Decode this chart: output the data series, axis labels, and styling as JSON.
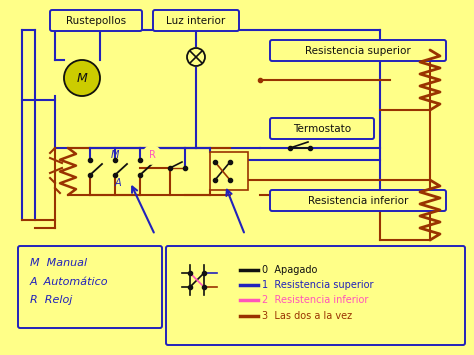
{
  "bg_color": "#FFFF88",
  "labels": {
    "rustepollos": "Rustepollos",
    "luz_interior": "Luz interior",
    "resistencia_superior": "Resistencia superior",
    "termostato": "Termostato",
    "resistencia_inferior": "Resistencia inferior",
    "m_manual": "M  Manual",
    "a_automatico": "A  Automático",
    "r_reloj": "R  Reloj",
    "legend_0": "0  Apagado",
    "legend_1": "1  Resistencia superior",
    "legend_2": "2  Resistencia inferior",
    "legend_3": "3  Las dos a la vez",
    "M_motor": "M",
    "M_switch": "M",
    "R_label": "R",
    "A_label": "A"
  },
  "colors": {
    "blue": "#2222BB",
    "dark_red": "#993300",
    "pink": "#FF55BB",
    "black": "#111111",
    "yellow_circle": "#CCCC00",
    "bg": "#FFFF88"
  }
}
